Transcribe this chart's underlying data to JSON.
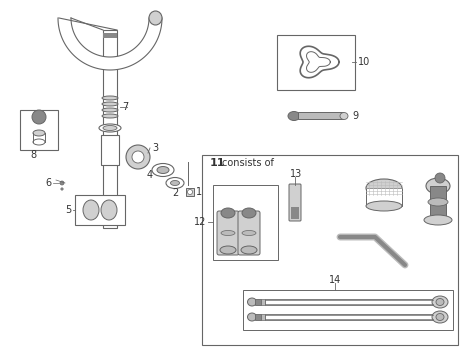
{
  "bg_color": "#ffffff",
  "line_color": "#666666",
  "label_color": "#333333",
  "light_gray": "#d0d0d0",
  "dark_gray": "#888888",
  "med_gray": "#bbbbbb",
  "box_edge": "#888888"
}
